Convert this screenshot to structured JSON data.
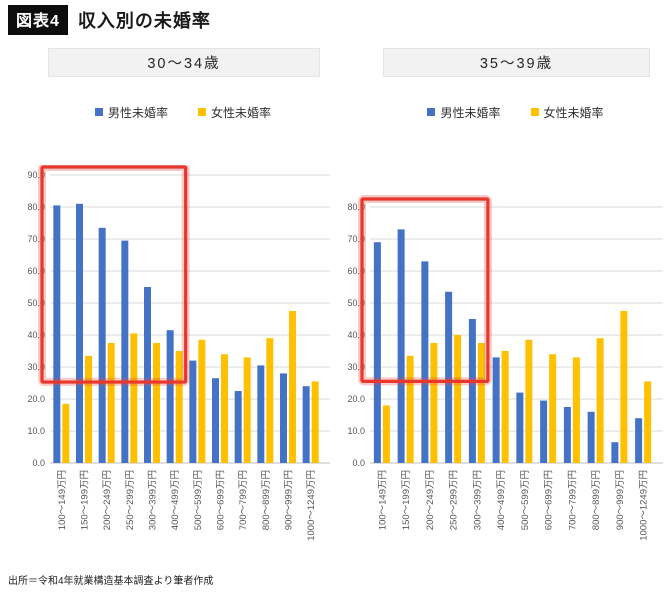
{
  "page": {
    "title_badge": "図表4",
    "title": "収入別の未婚率",
    "source": "出所＝令和4年就業構造基本調査より筆者作成"
  },
  "colors": {
    "male": "#4472C4",
    "female": "#FFC000",
    "highlight_box": "#E8372C",
    "grid": "#D9D9D9",
    "axis_line": "#BFBFBF",
    "axis_text": "#595959",
    "header_bg": "#F2F2F2"
  },
  "chart_data": [
    {
      "type": "bar",
      "title": "30〜34歳",
      "categories": [
        "100～149万円",
        "150～199万円",
        "200～249万円",
        "250～299万円",
        "300～399万円",
        "400～499万円",
        "500～599万円",
        "600～699万円",
        "700～799万円",
        "800～899万円",
        "900～999万円",
        "1000～1249万円"
      ],
      "series": [
        {
          "name": "男性未婚率",
          "values": [
            80.5,
            81.0,
            73.5,
            69.5,
            55.0,
            41.5,
            32.0,
            26.5,
            22.5,
            30.5,
            28.0,
            24.0
          ]
        },
        {
          "name": "女性未婚率",
          "values": [
            18.5,
            33.5,
            37.5,
            40.5,
            37.5,
            35.0,
            38.5,
            34.0,
            33.0,
            39.0,
            47.5,
            25.5
          ]
        }
      ],
      "xlabel": "",
      "ylabel": "",
      "ylim": [
        0,
        90
      ],
      "ytick_step": 10,
      "yticks": [
        "0.0",
        "10.0",
        "20.0",
        "30.0",
        "40.0",
        "50.0",
        "60.0",
        "70.0",
        "80.0",
        "90.0"
      ],
      "grid": true,
      "legend_position": "top",
      "highlight_box": {
        "from_category": "100～149万円",
        "to_category": "400～499万円",
        "from_index": 0,
        "to_index": 5,
        "bottom_value": 25.3,
        "note": "red emphasis rectangle over low-income male bars"
      }
    },
    {
      "type": "bar",
      "title": "35～39歳",
      "categories": [
        "100～149万円",
        "150～199万円",
        "200～249万円",
        "250～299万円",
        "300～399万円",
        "400～499万円",
        "500～599万円",
        "600～699万円",
        "700～799万円",
        "800～899万円",
        "900～999万円",
        "1000～1249万円"
      ],
      "series": [
        {
          "name": "男性未婚率",
          "values": [
            69.0,
            73.0,
            63.0,
            53.5,
            45.0,
            33.0,
            22.0,
            19.5,
            17.5,
            16.0,
            6.5,
            14.0
          ]
        },
        {
          "name": "女性未婚率",
          "values": [
            18.0,
            33.5,
            37.5,
            40.0,
            37.5,
            35.0,
            38.5,
            34.0,
            33.0,
            39.0,
            47.5,
            25.5
          ]
        }
      ],
      "xlabel": "",
      "ylabel": "",
      "ylim": [
        0,
        80
      ],
      "ytick_step": 10,
      "yticks": [
        "0.0",
        "10.0",
        "20.0",
        "30.0",
        "40.0",
        "50.0",
        "60.0",
        "70.0",
        "80.0"
      ],
      "grid": true,
      "legend_position": "top",
      "highlight_box": {
        "from_category": "100～149万円",
        "to_category": "300～399万円",
        "from_index": 0,
        "to_index": 4,
        "bottom_value": 25.5,
        "note": "red emphasis rectangle over low-income male bars"
      }
    }
  ]
}
